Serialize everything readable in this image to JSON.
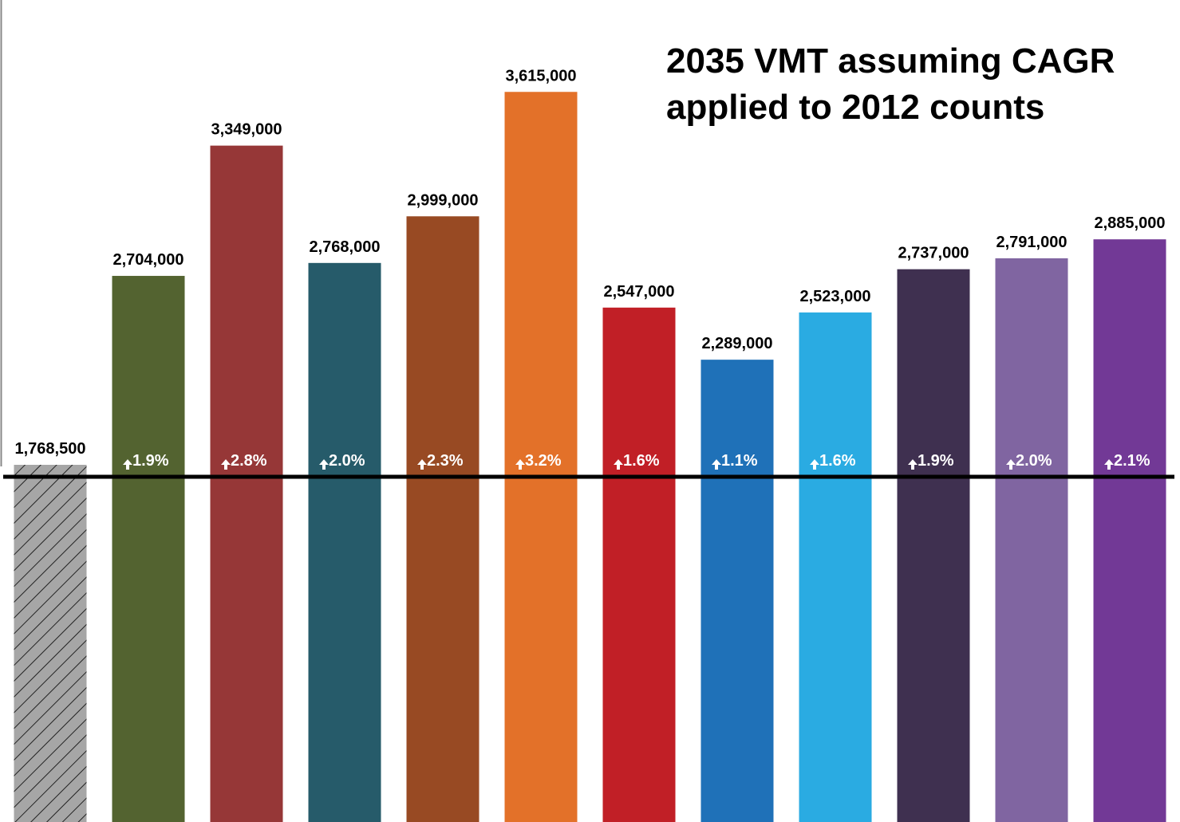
{
  "chart_data": {
    "type": "bar",
    "title": "2035 VMT assuming CAGR applied to 2012 counts",
    "values": [
      1768500,
      2704000,
      3349000,
      2768000,
      2999000,
      3615000,
      2547000,
      2289000,
      2523000,
      2737000,
      2791000,
      2885000
    ],
    "value_labels": [
      "1,768,500",
      "2,704,000",
      "3,349,000",
      "2,768,000",
      "2,999,000",
      "3,615,000",
      "2,547,000",
      "2,289,000",
      "2,523,000",
      "2,737,000",
      "2,791,000",
      "2,885,000"
    ],
    "annotations": [
      null,
      "1.9%",
      "2.8%",
      "2.0%",
      "2.3%",
      "3.2%",
      "1.6%",
      "1.1%",
      "1.6%",
      "1.9%",
      "2.0%",
      "2.1%"
    ],
    "colors": [
      "#a6a6a6",
      "#536330",
      "#963737",
      "#265b6a",
      "#984a23",
      "#e37129",
      "#c11f26",
      "#1f71b8",
      "#2aabe2",
      "#3f3050",
      "#8065a1",
      "#723996"
    ],
    "hatched": [
      true,
      false,
      false,
      false,
      false,
      false,
      false,
      false,
      false,
      false,
      false,
      false
    ],
    "ylim": [
      0,
      4070000
    ]
  }
}
